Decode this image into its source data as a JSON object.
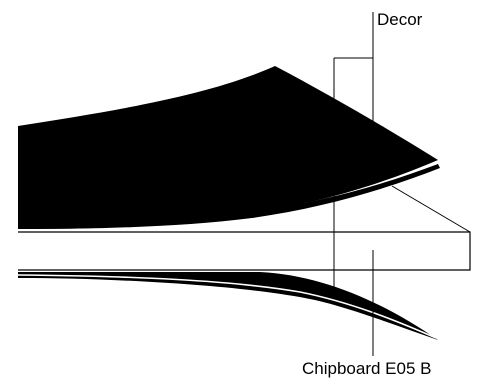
{
  "labels": {
    "decor": "Decor",
    "chipboard": "Chipboard E05 B"
  },
  "colors": {
    "fill": "#000000",
    "background": "#ffffff",
    "line": "#000000"
  }
}
